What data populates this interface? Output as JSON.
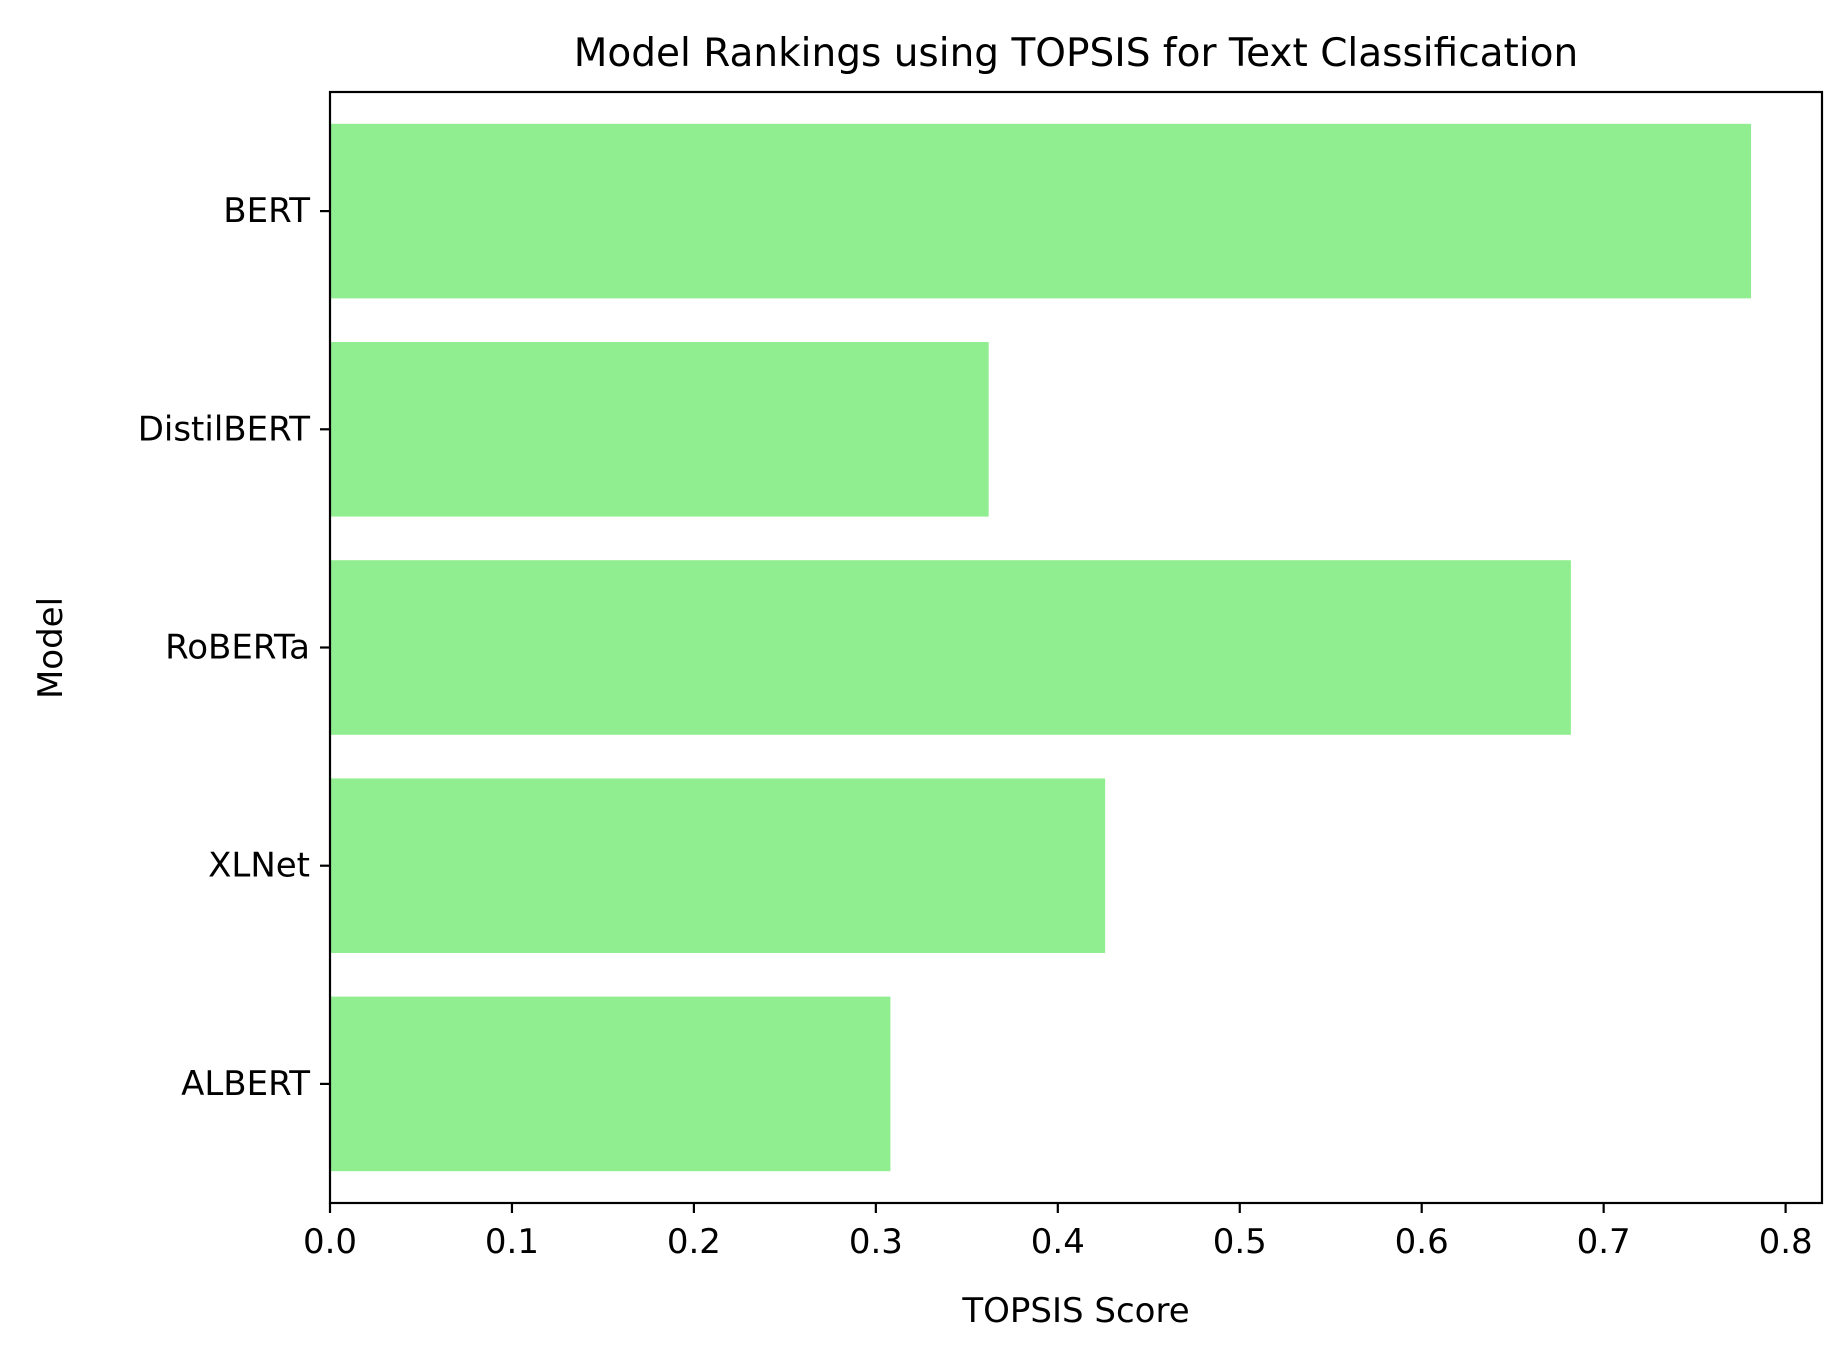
{
  "chart_data": {
    "type": "bar",
    "orientation": "horizontal",
    "title": "Model Rankings using TOPSIS for Text Classification",
    "xlabel": "TOPSIS Score",
    "ylabel": "Model",
    "categories": [
      "BERT",
      "DistilBERT",
      "RoBERTa",
      "XLNet",
      "ALBERT"
    ],
    "values": [
      0.781,
      0.362,
      0.682,
      0.426,
      0.308
    ],
    "xlim": [
      0,
      0.82
    ],
    "xticks": [
      0.0,
      0.1,
      0.2,
      0.3,
      0.4,
      0.5,
      0.6,
      0.7,
      0.8
    ],
    "xtick_labels": [
      "0.0",
      "0.1",
      "0.2",
      "0.3",
      "0.4",
      "0.5",
      "0.6",
      "0.7",
      "0.8"
    ],
    "bar_color": "#90ee90",
    "grid": false,
    "legend": "none"
  }
}
